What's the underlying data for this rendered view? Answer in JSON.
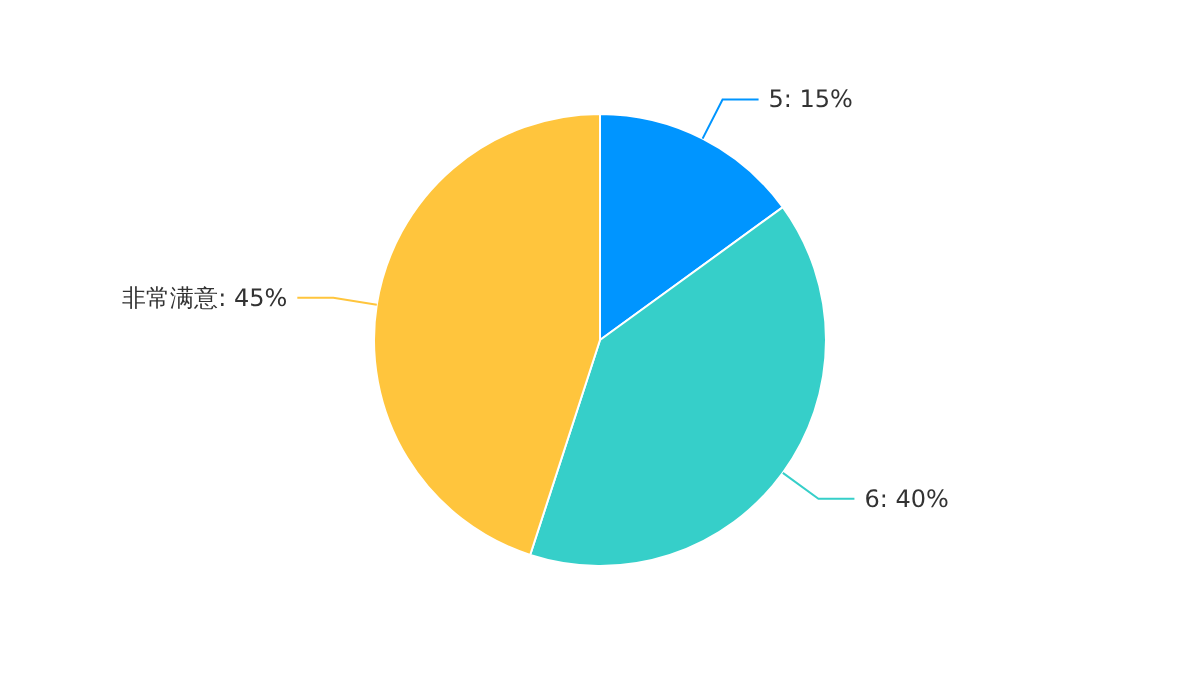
{
  "chart_data": {
    "type": "pie",
    "categories": [
      "5",
      "6",
      "非常满意"
    ],
    "values": [
      15,
      40,
      45
    ],
    "colors": [
      "#0095ff",
      "#36cfc9",
      "#ffc53d"
    ],
    "value_labels": [
      ": 15%",
      ": 40%",
      ": 45%"
    ]
  }
}
